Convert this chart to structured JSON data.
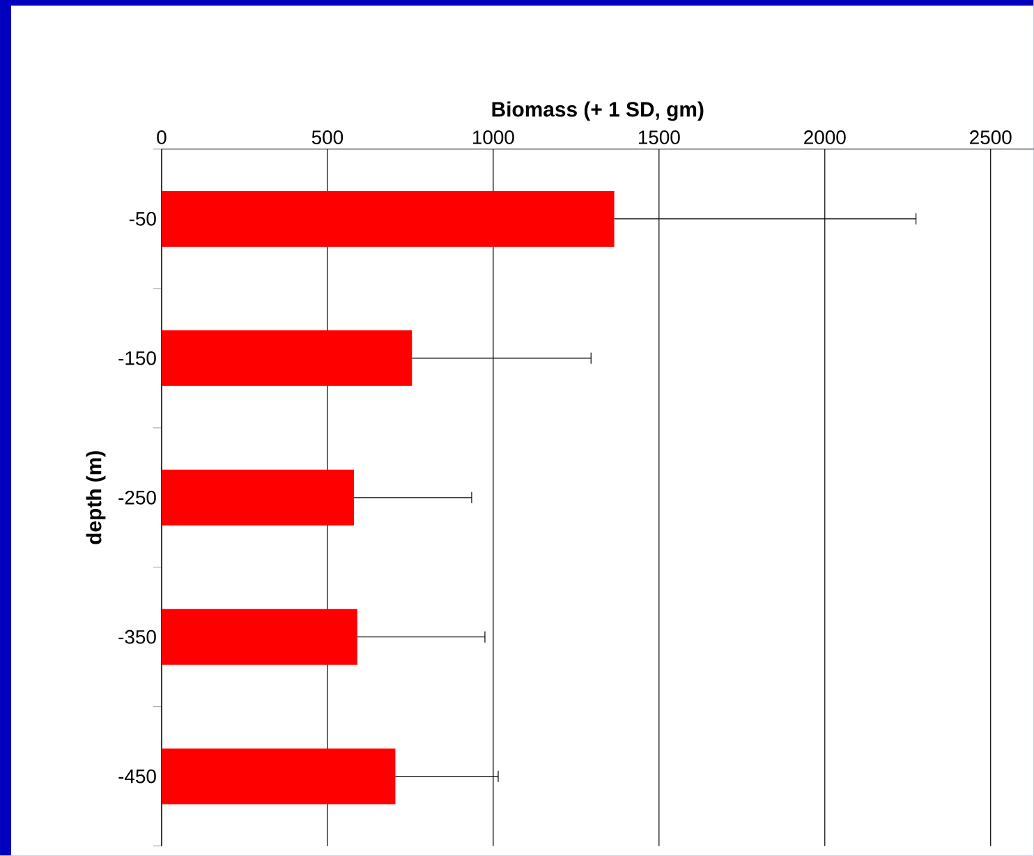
{
  "chart_data": {
    "type": "bar",
    "orientation": "horizontal",
    "xlabel": "Biomass (+ 1 SD, gm)",
    "ylabel": "depth (m)",
    "categories": [
      "-50",
      "-150",
      "-250",
      "-350",
      "-450"
    ],
    "values": [
      1365,
      755,
      580,
      590,
      705
    ],
    "errors": [
      [
        1365,
        2275
      ],
      [
        755,
        1295
      ],
      [
        580,
        935
      ],
      [
        590,
        975
      ],
      [
        705,
        1015
      ]
    ],
    "color": "#ff0000",
    "xlim": [
      0,
      2630
    ],
    "xticks": [
      0,
      500,
      1000,
      1500,
      2000,
      2500
    ],
    "grid": "x"
  }
}
